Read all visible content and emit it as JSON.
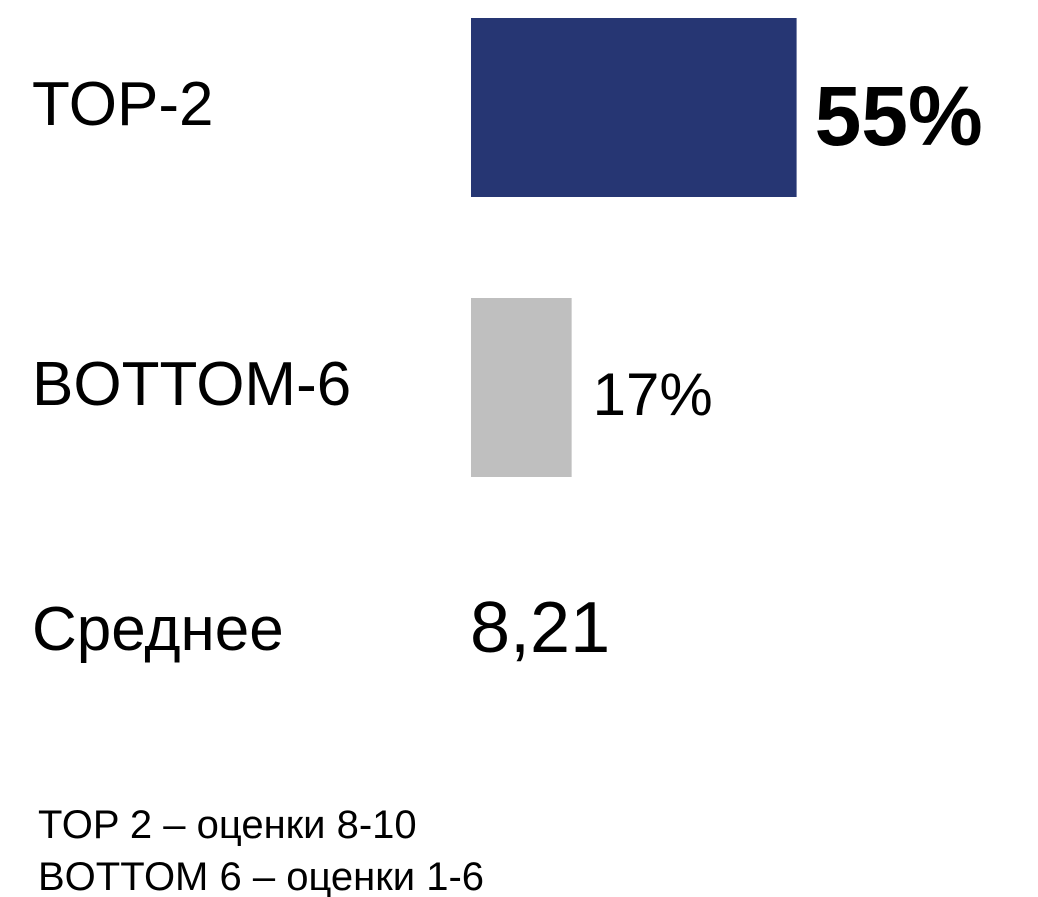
{
  "chart_data": {
    "type": "bar",
    "categories": [
      "TOP-2",
      "BOTTOM-6"
    ],
    "values": [
      55,
      17
    ],
    "value_labels": [
      "55%",
      "17%"
    ],
    "colors": [
      "#263673",
      "#bfbfbf"
    ],
    "average_label": "Среднее",
    "average": "8,21",
    "notes": [
      "TOP 2 – оценки 8-10",
      "BOTTOM 6 – оценки 1-6"
    ]
  }
}
